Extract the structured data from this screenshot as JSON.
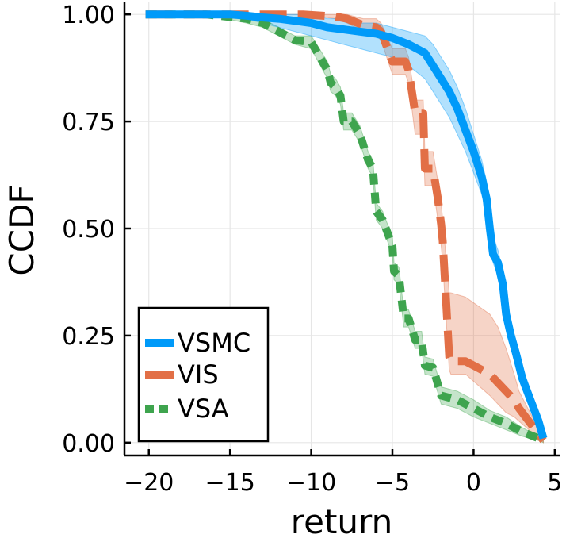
{
  "chart_data": {
    "type": "line",
    "title": "",
    "xlabel": "return",
    "ylabel": "CCDF",
    "xlim": [
      -21.5,
      5.3
    ],
    "ylim": [
      -0.03,
      1.03
    ],
    "x_ticks": [
      -20,
      -15,
      -10,
      -5,
      0,
      5
    ],
    "x_tick_labels": [
      "−20",
      "−15",
      "−10",
      "−5",
      "0",
      "5"
    ],
    "y_ticks": [
      0,
      0.25,
      0.5,
      0.75,
      1.0
    ],
    "y_tick_labels": [
      "0.00",
      "0.25",
      "0.50",
      "0.75",
      "1.00"
    ],
    "grid": true,
    "legend_position": "bottom-left",
    "series": [
      {
        "name": "VSMC",
        "color": "#009af9",
        "dash": "solid",
        "x": [
          -20.2,
          -15.0,
          -14.0,
          -13.0,
          -12.0,
          -11.0,
          -10.0,
          -9.0,
          -8.0,
          -7.0,
          -6.0,
          -5.0,
          -4.0,
          -3.0,
          -2.5,
          -2.0,
          -1.5,
          -1.0,
          -0.5,
          0.0,
          0.5,
          0.8,
          1.0,
          1.2,
          1.5,
          1.8,
          2.0,
          2.3,
          2.6,
          3.0,
          3.5,
          4.0,
          4.3
        ],
        "y": [
          1.0,
          1.0,
          0.997,
          0.993,
          0.99,
          0.985,
          0.98,
          0.97,
          0.965,
          0.96,
          0.955,
          0.945,
          0.93,
          0.91,
          0.88,
          0.85,
          0.82,
          0.78,
          0.73,
          0.68,
          0.62,
          0.57,
          0.5,
          0.44,
          0.42,
          0.37,
          0.3,
          0.25,
          0.21,
          0.15,
          0.1,
          0.05,
          0.01
        ],
        "band_lower": [
          1.0,
          1.0,
          0.99,
          0.98,
          0.97,
          0.96,
          0.95,
          0.94,
          0.93,
          0.92,
          0.91,
          0.9,
          0.88,
          0.85,
          0.82,
          0.79,
          0.76,
          0.72,
          0.68,
          0.63,
          0.58,
          0.53,
          0.47,
          0.42,
          0.39,
          0.34,
          0.28,
          0.23,
          0.19,
          0.13,
          0.08,
          0.04,
          0.005
        ],
        "band_upper": [
          1.0,
          1.0,
          1.0,
          1.0,
          1.0,
          1.0,
          1.0,
          0.99,
          0.99,
          0.98,
          0.98,
          0.97,
          0.96,
          0.95,
          0.93,
          0.9,
          0.87,
          0.83,
          0.78,
          0.72,
          0.66,
          0.61,
          0.54,
          0.48,
          0.45,
          0.4,
          0.33,
          0.28,
          0.24,
          0.18,
          0.12,
          0.07,
          0.02
        ]
      },
      {
        "name": "VIS",
        "color": "#e26f46",
        "dash": "long",
        "x": [
          -20.2,
          -10.5,
          -8.5,
          -7.8,
          -6.8,
          -6.0,
          -5.7,
          -5.0,
          -4.2,
          -4.0,
          -3.6,
          -3.1,
          -3.0,
          -2.5,
          -2.2,
          -2.0,
          -1.9,
          -1.5,
          -1.4,
          -0.5,
          1.0,
          1.5,
          2.0,
          2.5,
          2.8,
          4.3
        ],
        "y": [
          1.0,
          1.0,
          0.995,
          0.99,
          0.975,
          0.97,
          0.96,
          0.89,
          0.89,
          0.87,
          0.77,
          0.77,
          0.64,
          0.64,
          0.57,
          0.51,
          0.47,
          0.2,
          0.19,
          0.19,
          0.16,
          0.14,
          0.12,
          0.1,
          0.08,
          0.005
        ],
        "band_lower": [
          1.0,
          1.0,
          0.99,
          0.98,
          0.96,
          0.95,
          0.94,
          0.86,
          0.86,
          0.84,
          0.72,
          0.72,
          0.6,
          0.6,
          0.52,
          0.46,
          0.42,
          0.17,
          0.16,
          0.16,
          0.11,
          0.09,
          0.07,
          0.06,
          0.05,
          0.0
        ],
        "band_upper": [
          1.0,
          1.0,
          1.0,
          1.0,
          0.99,
          0.99,
          0.98,
          0.92,
          0.92,
          0.9,
          0.8,
          0.8,
          0.68,
          0.68,
          0.61,
          0.56,
          0.52,
          0.35,
          0.35,
          0.34,
          0.3,
          0.27,
          0.22,
          0.16,
          0.12,
          0.01
        ]
      },
      {
        "name": "VSA",
        "color": "#3ea44e",
        "dash": "short",
        "x": [
          -20.2,
          -16.5,
          -14.0,
          -13.0,
          -12.0,
          -11.5,
          -11.0,
          -10.0,
          -9.0,
          -8.8,
          -8.5,
          -8.2,
          -8.0,
          -7.5,
          -7.0,
          -6.5,
          -6.2,
          -6.0,
          -5.6,
          -5.4,
          -5.0,
          -4.9,
          -4.6,
          -4.3,
          -4.0,
          -3.6,
          -3.2,
          -3.0,
          -2.5,
          -2.0,
          -1.5,
          -1.0,
          -0.5,
          0.0,
          1.0,
          2.0,
          3.0,
          4.0,
          4.3
        ],
        "y": [
          1.0,
          1.0,
          0.99,
          0.98,
          0.96,
          0.95,
          0.94,
          0.935,
          0.87,
          0.84,
          0.83,
          0.81,
          0.75,
          0.75,
          0.72,
          0.66,
          0.64,
          0.54,
          0.52,
          0.5,
          0.46,
          0.4,
          0.39,
          0.29,
          0.29,
          0.24,
          0.24,
          0.18,
          0.175,
          0.11,
          0.105,
          0.1,
          0.09,
          0.08,
          0.06,
          0.045,
          0.025,
          0.01,
          0.005
        ],
        "band_lower": [
          1.0,
          1.0,
          0.98,
          0.97,
          0.95,
          0.94,
          0.93,
          0.92,
          0.85,
          0.82,
          0.81,
          0.79,
          0.73,
          0.73,
          0.7,
          0.64,
          0.62,
          0.52,
          0.5,
          0.48,
          0.44,
          0.38,
          0.37,
          0.27,
          0.27,
          0.22,
          0.22,
          0.16,
          0.155,
          0.09,
          0.085,
          0.08,
          0.07,
          0.06,
          0.045,
          0.03,
          0.015,
          0.005,
          0.0
        ],
        "band_upper": [
          1.0,
          1.0,
          1.0,
          0.99,
          0.97,
          0.96,
          0.95,
          0.95,
          0.89,
          0.86,
          0.85,
          0.83,
          0.77,
          0.77,
          0.74,
          0.68,
          0.66,
          0.56,
          0.54,
          0.52,
          0.48,
          0.42,
          0.41,
          0.31,
          0.31,
          0.26,
          0.26,
          0.2,
          0.195,
          0.13,
          0.125,
          0.12,
          0.11,
          0.1,
          0.075,
          0.06,
          0.035,
          0.015,
          0.01
        ]
      }
    ]
  }
}
